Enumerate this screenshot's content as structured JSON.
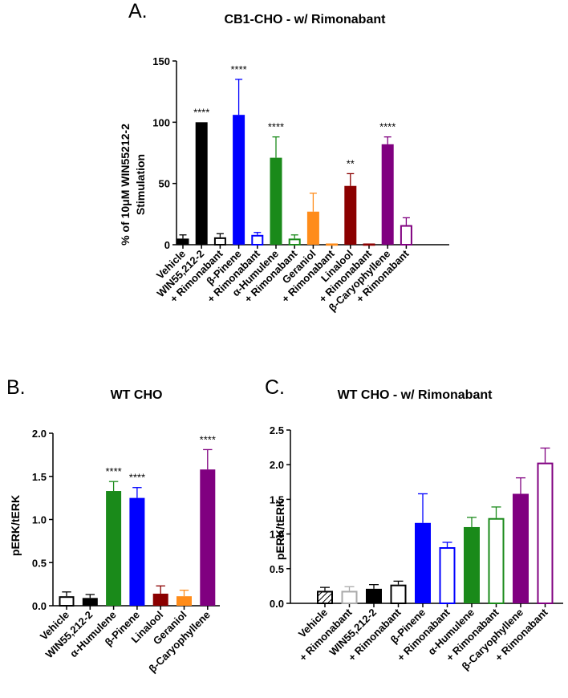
{
  "chart_data": [
    {
      "type": "bar",
      "panel": "A.",
      "title": "CB1-CHO - w/ Rimonabant",
      "ylabel_line1": "% of 10μM WIN55212-2",
      "ylabel_line2": "Stimulation",
      "ylim": [
        0,
        150
      ],
      "yticks": [
        "0",
        "50",
        "100",
        "150"
      ],
      "categories": [
        "Vehicle",
        "WIN55,212-2",
        "+ Rimonabant",
        "β-Pinene",
        "+ Rimonabant",
        "α-Humulene",
        "+ Rimonabant",
        "Geraniol",
        "+ Rimonabant",
        "Linalool",
        "+ Rimonabant",
        "β-Caryophyllene",
        "+ Rimonabant"
      ],
      "values": [
        5,
        100,
        6,
        106,
        8,
        71,
        5,
        27,
        1,
        48,
        1,
        82,
        16
      ],
      "errors": [
        3,
        0,
        3,
        29,
        2,
        17,
        3,
        15,
        0,
        10,
        0,
        6,
        6
      ],
      "colors": [
        "#000000",
        "#000000",
        "#000000",
        "#0000ff",
        "#0000ff",
        "#1a8a1a",
        "#1a8a1a",
        "#ff8c1a",
        "#ff8c1a",
        "#8b0000",
        "#8b0000",
        "#800080",
        "#800080"
      ],
      "filled": [
        true,
        true,
        false,
        true,
        false,
        true,
        false,
        true,
        false,
        true,
        false,
        true,
        false
      ],
      "significance": [
        "",
        "****",
        "",
        "****",
        "",
        "****",
        "",
        "",
        "",
        "**",
        "",
        "****",
        ""
      ]
    },
    {
      "type": "bar",
      "panel": "B.",
      "title": "WT CHO",
      "ylabel": "pERK/tERK",
      "ylim": [
        0,
        2.0
      ],
      "yticks": [
        "0.0",
        "0.5",
        "1.0",
        "1.5",
        "2.0"
      ],
      "categories": [
        "Vehicle",
        "WIN55,212-2",
        "α-Humulene",
        "β-Pinene",
        "Linalool",
        "Geraniol",
        "β-Caryophyllene"
      ],
      "values": [
        0.11,
        0.09,
        1.33,
        1.25,
        0.14,
        0.11,
        1.58
      ],
      "errors": [
        0.05,
        0.04,
        0.11,
        0.12,
        0.09,
        0.07,
        0.23
      ],
      "colors": [
        "#000000",
        "#000000",
        "#1a8a1a",
        "#0000ff",
        "#8b0000",
        "#ff8c1a",
        "#800080"
      ],
      "filled": [
        false,
        true,
        true,
        true,
        true,
        true,
        true
      ],
      "significance": [
        "",
        "",
        "****",
        "****",
        "",
        "",
        "****"
      ]
    },
    {
      "type": "bar",
      "panel": "C.",
      "title": "WT CHO - w/ Rimonabant",
      "ylabel": "pERK/tERK",
      "ylim": [
        0,
        2.5
      ],
      "yticks": [
        "0.0",
        "0.5",
        "1.0",
        "1.5",
        "2.0",
        "2.5"
      ],
      "categories": [
        "Vehicle",
        "+ Rimonabant",
        "WIN55,212-2",
        "+ Rimonabant",
        "β-Pinene",
        "+ Rimonabant",
        "α-Humulene",
        "+ Rimonabant",
        "β-Caryophyllene",
        "+ Rimonabant"
      ],
      "values": [
        0.18,
        0.18,
        0.21,
        0.27,
        1.16,
        0.81,
        1.1,
        1.23,
        1.58,
        2.03
      ],
      "errors": [
        0.05,
        0.06,
        0.06,
        0.05,
        0.42,
        0.07,
        0.14,
        0.16,
        0.23,
        0.21
      ],
      "colors": [
        "#000000",
        "#aaaaaa",
        "#000000",
        "#000000",
        "#0000ff",
        "#0000ff",
        "#1a8a1a",
        "#1a8a1a",
        "#800080",
        "#800080"
      ],
      "filled": [
        false,
        false,
        true,
        false,
        true,
        false,
        true,
        false,
        true,
        false
      ],
      "hatched": [
        true,
        false,
        false,
        false,
        false,
        false,
        false,
        false,
        false,
        false
      ],
      "significance": [
        "",
        "",
        "",
        "",
        "",
        "",
        "",
        "",
        "",
        ""
      ]
    }
  ]
}
